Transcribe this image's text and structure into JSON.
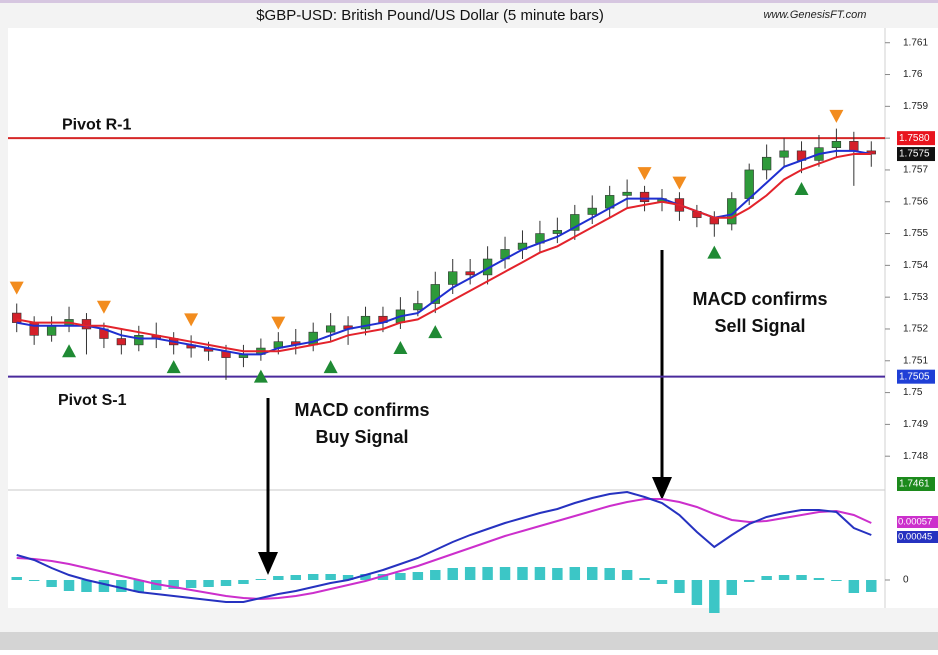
{
  "chart_data": {
    "type": "candlestick",
    "title": "$GBP-USD:  British Pound/US Dollar  (5 minute bars)",
    "source": "www.GenesisFT.com",
    "ylim": [
      1.747,
      1.7614
    ],
    "yticks": [
      1.748,
      1.749,
      1.75,
      1.751,
      1.752,
      1.753,
      1.754,
      1.755,
      1.756,
      1.757,
      1.758,
      1.759,
      1.76,
      1.761
    ],
    "up_color": "#2e9a3a",
    "down_color": "#d4202a",
    "open": [
      1.7525,
      1.7522,
      1.7518,
      1.7521,
      1.7523,
      1.752,
      1.7517,
      1.7515,
      1.7518,
      1.7517,
      1.7515,
      1.7514,
      1.7513,
      1.7511,
      1.7512,
      1.7514,
      1.7516,
      1.7515,
      1.7519,
      1.7521,
      1.752,
      1.7524,
      1.7522,
      1.7526,
      1.7528,
      1.7534,
      1.7538,
      1.7537,
      1.7542,
      1.7545,
      1.7547,
      1.755,
      1.7551,
      1.7556,
      1.7558,
      1.7562,
      1.7563,
      1.756,
      1.7561,
      1.7557,
      1.7555,
      1.7553,
      1.7561,
      1.757,
      1.7574,
      1.7576,
      1.7573,
      1.7577,
      1.7579,
      1.7576
    ],
    "high": [
      1.7528,
      1.7524,
      1.7524,
      1.7527,
      1.7525,
      1.7522,
      1.752,
      1.7521,
      1.7522,
      1.7519,
      1.7518,
      1.7516,
      1.7515,
      1.7515,
      1.7517,
      1.7519,
      1.752,
      1.7522,
      1.7525,
      1.7524,
      1.7527,
      1.7527,
      1.753,
      1.7532,
      1.7538,
      1.7542,
      1.7542,
      1.7546,
      1.7549,
      1.7551,
      1.7554,
      1.7555,
      1.7559,
      1.7562,
      1.7565,
      1.7567,
      1.7565,
      1.7564,
      1.7563,
      1.7559,
      1.7557,
      1.7563,
      1.7572,
      1.7578,
      1.758,
      1.7579,
      1.7581,
      1.7583,
      1.7582,
      1.7579
    ],
    "low": [
      1.7519,
      1.7515,
      1.7516,
      1.7519,
      1.7512,
      1.7514,
      1.7512,
      1.7513,
      1.7514,
      1.7512,
      1.7511,
      1.751,
      1.7504,
      1.7508,
      1.751,
      1.7512,
      1.7512,
      1.7513,
      1.7516,
      1.7515,
      1.7518,
      1.7519,
      1.752,
      1.7524,
      1.7525,
      1.7531,
      1.7534,
      1.7534,
      1.7539,
      1.7542,
      1.7544,
      1.7547,
      1.7548,
      1.7553,
      1.7555,
      1.7558,
      1.7557,
      1.7557,
      1.7554,
      1.7552,
      1.7549,
      1.7551,
      1.7559,
      1.7567,
      1.7571,
      1.7569,
      1.7571,
      1.7574,
      1.7565,
      1.7571
    ],
    "close": [
      1.7522,
      1.7518,
      1.7521,
      1.7523,
      1.752,
      1.7517,
      1.7515,
      1.7518,
      1.7517,
      1.7515,
      1.7514,
      1.7513,
      1.7511,
      1.7512,
      1.7514,
      1.7516,
      1.7515,
      1.7519,
      1.7521,
      1.752,
      1.7524,
      1.7522,
      1.7526,
      1.7528,
      1.7534,
      1.7538,
      1.7537,
      1.7542,
      1.7545,
      1.7547,
      1.755,
      1.7551,
      1.7556,
      1.7558,
      1.7562,
      1.7563,
      1.756,
      1.7561,
      1.7557,
      1.7555,
      1.7553,
      1.7561,
      1.757,
      1.7574,
      1.7576,
      1.7573,
      1.7577,
      1.7579,
      1.7576,
      1.7575
    ],
    "averages": [
      {
        "color": "#1f2fd0",
        "values": [
          1.7522,
          1.7521,
          1.7521,
          1.7521,
          1.7521,
          1.752,
          1.7518,
          1.7517,
          1.7517,
          1.7516,
          1.7515,
          1.7514,
          1.7513,
          1.7512,
          1.7512,
          1.7514,
          1.7515,
          1.7516,
          1.7518,
          1.752,
          1.7521,
          1.7522,
          1.7524,
          1.7525,
          1.7529,
          1.7533,
          1.7536,
          1.7539,
          1.7542,
          1.7545,
          1.7547,
          1.7549,
          1.7552,
          1.7555,
          1.7558,
          1.7561,
          1.7561,
          1.7561,
          1.7559,
          1.7557,
          1.7555,
          1.7556,
          1.7561,
          1.7566,
          1.7571,
          1.7573,
          1.7575,
          1.7576,
          1.7576,
          1.7575
        ]
      },
      {
        "color": "#e3232b",
        "values": [
          1.7523,
          1.7522,
          1.7522,
          1.7522,
          1.7521,
          1.7521,
          1.752,
          1.7519,
          1.7518,
          1.7517,
          1.7516,
          1.7515,
          1.7514,
          1.7513,
          1.7513,
          1.7513,
          1.7514,
          1.7515,
          1.7516,
          1.7518,
          1.7519,
          1.752,
          1.7522,
          1.7523,
          1.7526,
          1.7529,
          1.7532,
          1.7535,
          1.7538,
          1.7541,
          1.7544,
          1.7546,
          1.7549,
          1.7552,
          1.7555,
          1.7558,
          1.7559,
          1.756,
          1.7559,
          1.7557,
          1.7555,
          1.7555,
          1.7558,
          1.7562,
          1.7567,
          1.757,
          1.7572,
          1.7574,
          1.7575,
          1.7575
        ]
      }
    ],
    "buy_signals": [
      null,
      null,
      null,
      1.7513,
      null,
      null,
      null,
      null,
      null,
      1.7508,
      null,
      null,
      null,
      null,
      1.7505,
      null,
      null,
      null,
      1.7508,
      null,
      null,
      null,
      1.7514,
      null,
      1.7519,
      null,
      null,
      null,
      null,
      null,
      null,
      null,
      null,
      null,
      null,
      null,
      null,
      null,
      null,
      null,
      1.7544,
      null,
      null,
      null,
      null,
      1.7564,
      null,
      null,
      null,
      null
    ],
    "sell_signals": [
      1.7533,
      null,
      null,
      null,
      null,
      1.7527,
      null,
      null,
      null,
      null,
      1.7523,
      null,
      null,
      null,
      null,
      1.7522,
      null,
      null,
      null,
      null,
      null,
      null,
      null,
      null,
      null,
      null,
      null,
      null,
      null,
      null,
      null,
      null,
      null,
      null,
      null,
      null,
      1.7569,
      null,
      1.7566,
      null,
      null,
      null,
      null,
      null,
      null,
      null,
      null,
      1.7587,
      null,
      null
    ],
    "pivots": [
      {
        "name": "Pivot R-1",
        "value": 1.758,
        "color": "#d62828"
      },
      {
        "name": "Pivot S-1",
        "value": 1.7505,
        "color": "#4a2a9c"
      }
    ],
    "price_labels": [
      {
        "value": 1.758,
        "label": "1.7580",
        "color": "#e8141e"
      },
      {
        "value": 1.7575,
        "label": "1.7575",
        "color": "#111111"
      },
      {
        "value": 1.7505,
        "label": "1.7505",
        "color": "#1f3fd6"
      }
    ],
    "panel_label": "1.7461",
    "annotations": [
      {
        "lines": [
          "MACD confirms",
          "Buy Signal"
        ]
      },
      {
        "lines": [
          "MACD confirms",
          "Sell Signal"
        ]
      }
    ],
    "macd": {
      "ylim": [
        -0.00025,
        0.0009
      ],
      "yticks": [
        0
      ],
      "histogram_color": "#3cc6c6",
      "histogram": [
        3e-05,
        -1e-05,
        -7e-05,
        -0.00011,
        -0.00012,
        -0.00012,
        -0.00012,
        -0.00012,
        -0.0001,
        -9e-05,
        -8e-05,
        -7e-05,
        -6e-05,
        -4e-05,
        1e-05,
        4e-05,
        5e-05,
        6e-05,
        6e-05,
        5e-05,
        6e-05,
        6e-05,
        7e-05,
        8e-05,
        0.0001,
        0.00012,
        0.00013,
        0.00013,
        0.00013,
        0.00013,
        0.00013,
        0.00012,
        0.00013,
        0.00013,
        0.00012,
        0.0001,
        2e-05,
        -4e-05,
        -0.00013,
        -0.00025,
        -0.00033,
        -0.00015,
        -2e-05,
        4e-05,
        5e-05,
        5e-05,
        2e-05,
        -1e-05,
        -0.00013,
        -0.00012
      ],
      "series": [
        {
          "color": "#cc2fcc",
          "last_label": "0.00057",
          "values": [
            0.00022,
            0.00021,
            0.00019,
            0.00016,
            0.00012,
            8e-05,
            4e-05,
            0.0,
            -4e-05,
            -7e-05,
            -0.0001,
            -0.00013,
            -0.00016,
            -0.00018,
            -0.00019,
            -0.00018,
            -0.00016,
            -0.00013,
            -9e-05,
            -5e-05,
            -1e-05,
            4e-05,
            9e-05,
            0.00014,
            0.0002,
            0.00026,
            0.00032,
            0.00038,
            0.00044,
            0.00049,
            0.00054,
            0.00059,
            0.00064,
            0.00069,
            0.00074,
            0.00078,
            0.00081,
            0.00081,
            0.00078,
            0.00073,
            0.00066,
            0.0006,
            0.00058,
            0.00059,
            0.00062,
            0.00065,
            0.00068,
            0.00069,
            0.00065,
            0.00057
          ]
        },
        {
          "color": "#2632c0",
          "last_label": "0.00045",
          "values": [
            0.00025,
            0.0002,
            0.00012,
            5e-05,
            0.0,
            -4e-05,
            -8e-05,
            -0.00012,
            -0.00014,
            -0.00016,
            -0.00018,
            -0.0002,
            -0.00022,
            -0.00022,
            -0.00018,
            -0.00014,
            -0.00011,
            -7e-05,
            -3e-05,
            0.0,
            5e-05,
            0.0001,
            0.00016,
            0.00022,
            0.0003,
            0.00038,
            0.00045,
            0.00051,
            0.00057,
            0.00062,
            0.00067,
            0.00071,
            0.00077,
            0.00082,
            0.00086,
            0.00088,
            0.00083,
            0.00077,
            0.00065,
            0.00048,
            0.00033,
            0.00045,
            0.00056,
            0.00063,
            0.00067,
            0.0007,
            0.0007,
            0.00068,
            0.00052,
            0.00045
          ]
        }
      ]
    }
  }
}
